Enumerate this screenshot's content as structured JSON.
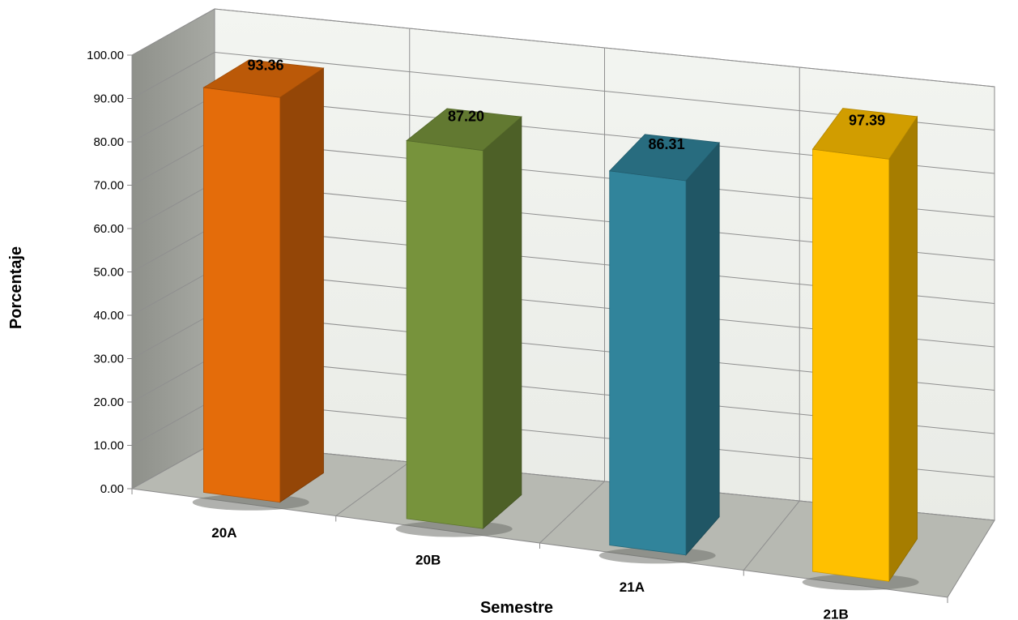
{
  "chart_data": {
    "type": "bar",
    "categories": [
      "20A",
      "20B",
      "21A",
      "21B"
    ],
    "values": [
      93.36,
      87.2,
      86.31,
      97.39
    ],
    "value_labels": [
      "93.36",
      "87.20",
      "86.31",
      "97.39"
    ],
    "xlabel": "Semestre",
    "ylabel": "Porcentaje",
    "ylim": [
      0,
      100
    ],
    "y_ticks": [
      "0.00",
      "10.00",
      "20.00",
      "30.00",
      "40.00",
      "50.00",
      "60.00",
      "70.00",
      "80.00",
      "90.00",
      "100.00"
    ],
    "grid": true,
    "style": "3d-column",
    "legend": "none",
    "colors": [
      "#E46C0A",
      "#77933C",
      "#31849B",
      "#FFC000"
    ],
    "wall_color": "#F0F2EE",
    "side_wall_color": "#9C9E98",
    "floor_color": "#B7B9B2"
  }
}
